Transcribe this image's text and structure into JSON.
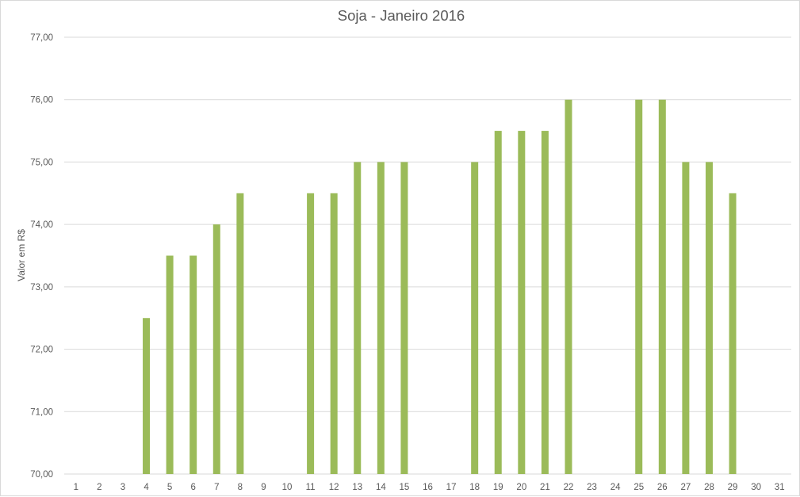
{
  "chart_data": {
    "type": "bar",
    "title": "Soja - Janeiro 2016",
    "xlabel": "",
    "ylabel": "Valor em R$",
    "categories": [
      "1",
      "2",
      "3",
      "4",
      "5",
      "6",
      "7",
      "8",
      "9",
      "10",
      "11",
      "12",
      "13",
      "14",
      "15",
      "16",
      "17",
      "18",
      "19",
      "20",
      "21",
      "22",
      "23",
      "24",
      "25",
      "26",
      "27",
      "28",
      "29",
      "30",
      "31"
    ],
    "values": [
      null,
      null,
      null,
      72.5,
      73.5,
      73.5,
      74.0,
      74.5,
      null,
      null,
      74.5,
      74.5,
      75.0,
      75.0,
      75.0,
      null,
      null,
      75.0,
      75.5,
      75.5,
      75.5,
      76.0,
      null,
      null,
      76.0,
      76.0,
      75.0,
      75.0,
      74.5,
      null,
      null
    ],
    "ylim": [
      70,
      77
    ],
    "yticks": [
      "70,00",
      "71,00",
      "72,00",
      "73,00",
      "74,00",
      "75,00",
      "76,00",
      "77,00"
    ],
    "grid": true,
    "legend": "none",
    "bar_color": "#9bbb59",
    "grid_color": "#d9d9d9",
    "text_color": "#595959"
  }
}
